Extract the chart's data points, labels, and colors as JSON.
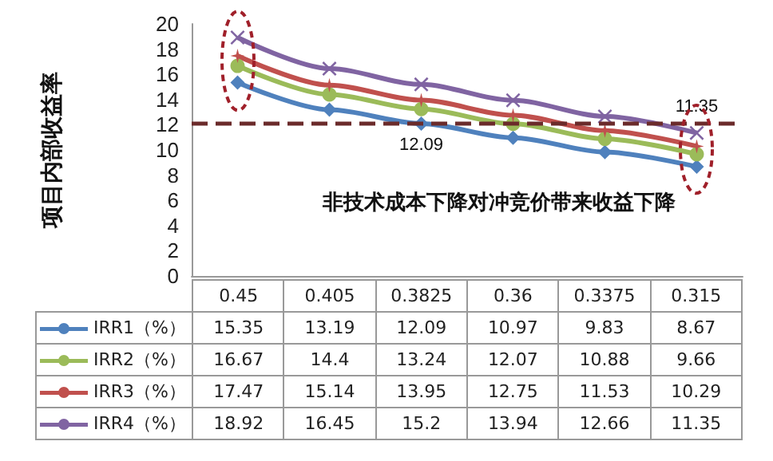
{
  "chart_data": {
    "type": "line",
    "ylabel": "项目内部收益率",
    "categories": [
      "0.45",
      "0.405",
      "0.3825",
      "0.36",
      "0.3375",
      "0.315"
    ],
    "series": [
      {
        "name": "IRR1（%）",
        "color": "#4f81bd",
        "marker": "diamond",
        "values": [
          15.35,
          13.19,
          12.09,
          10.97,
          9.83,
          8.67
        ]
      },
      {
        "name": "IRR2（%）",
        "color": "#9bbb59",
        "marker": "circle",
        "values": [
          16.67,
          14.4,
          13.24,
          12.07,
          10.88,
          9.66
        ]
      },
      {
        "name": "IRR3（%）",
        "color": "#c0504d",
        "marker": "star",
        "values": [
          17.47,
          15.14,
          13.95,
          12.75,
          11.53,
          10.29
        ]
      },
      {
        "name": "IRR4（%）",
        "color": "#8064a2",
        "marker": "cross",
        "values": [
          18.92,
          16.45,
          15.2,
          13.94,
          12.66,
          11.35
        ]
      }
    ],
    "ylim": [
      0,
      20
    ],
    "yticks": [
      0,
      2,
      4,
      6,
      8,
      10,
      12,
      14,
      16,
      18,
      20
    ],
    "ref_lines": [
      {
        "axis": "y",
        "value": 12.09,
        "color": "#6b2b2b",
        "line_style": "dashed"
      }
    ],
    "annotations": [
      {
        "text": "12.09",
        "x": "0.3825",
        "y": 12.09
      },
      {
        "text": "11.35",
        "x": "0.315",
        "y": 11.35
      },
      "非技术成本下降对冲竞价带来收益下降"
    ],
    "data_labels": true,
    "legend": "bottom",
    "grid": false
  }
}
